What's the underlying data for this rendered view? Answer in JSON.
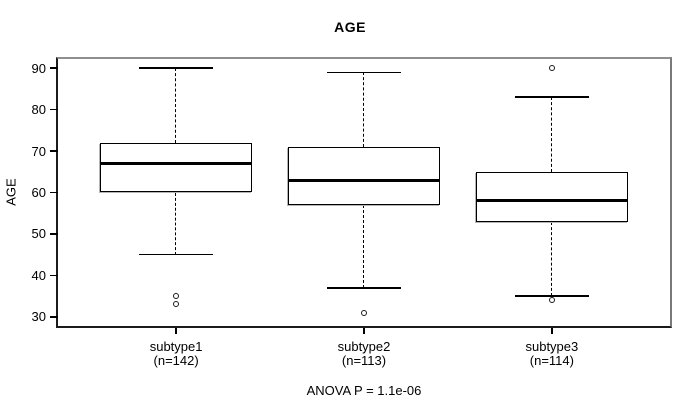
{
  "colors": {
    "foreground": "#000000",
    "background": "#ffffff",
    "frame_gray": "#8f8f8f"
  },
  "chart_data": {
    "type": "boxplot",
    "title": "AGE",
    "ylabel": "AGE",
    "xlabel": "",
    "caption": "ANOVA P = 1.1e-06",
    "ylim": [
      27.8,
      92.2
    ],
    "yticks": [
      30,
      40,
      50,
      60,
      70,
      80,
      90
    ],
    "grid": false,
    "legend": "none",
    "groups": [
      {
        "label": "subtype1",
        "sublabel": "(n=142)",
        "n": 142,
        "stats": {
          "whisker_low": 45,
          "q1": 60,
          "median": 67,
          "q3": 72,
          "whisker_high": 90
        },
        "outliers": [
          35,
          33
        ]
      },
      {
        "label": "subtype2",
        "sublabel": "(n=113)",
        "n": 113,
        "stats": {
          "whisker_low": 37,
          "q1": 57,
          "median": 63,
          "q3": 71,
          "whisker_high": 89
        },
        "outliers": [
          31
        ]
      },
      {
        "label": "subtype3",
        "sublabel": "(n=114)",
        "n": 114,
        "stats": {
          "whisker_low": 35,
          "q1": 53,
          "median": 58,
          "q3": 65,
          "whisker_high": 83
        },
        "outliers": [
          90,
          34
        ]
      }
    ]
  }
}
